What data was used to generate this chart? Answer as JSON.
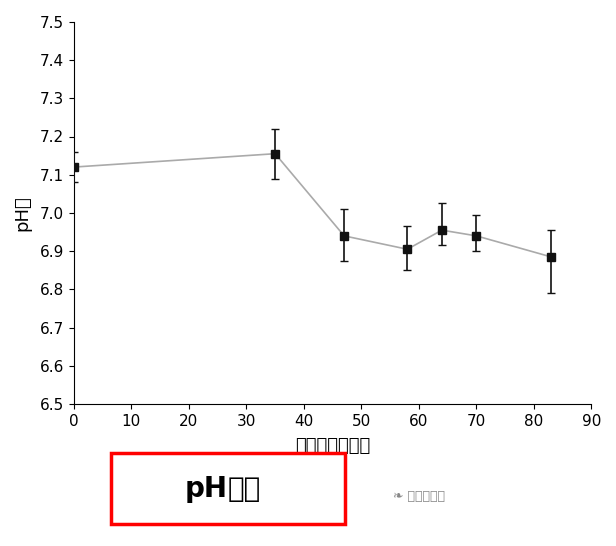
{
  "x": [
    0,
    35,
    47,
    58,
    64,
    70,
    83
  ],
  "y": [
    7.12,
    7.155,
    6.94,
    6.905,
    6.955,
    6.94,
    6.885
  ],
  "yerr_upper": [
    0.04,
    0.065,
    0.07,
    0.06,
    0.07,
    0.055,
    0.07
  ],
  "yerr_lower": [
    0.04,
    0.065,
    0.065,
    0.055,
    0.04,
    0.04,
    0.095
  ],
  "xlim": [
    0,
    90
  ],
  "ylim": [
    6.5,
    7.5
  ],
  "xticks": [
    0,
    10,
    20,
    30,
    40,
    50,
    60,
    70,
    80,
    90
  ],
  "yticks": [
    6.5,
    6.6,
    6.7,
    6.8,
    6.9,
    7.0,
    7.1,
    7.2,
    7.3,
    7.4,
    7.5
  ],
  "xlabel": "贯存时间（月）",
  "ylabel": "pH値",
  "title_latin": "pH",
  "title_chinese": "变化",
  "watermark": "亚洲环保网",
  "line_color": "#aaaaaa",
  "marker_color": "#111111",
  "background_color": "#ffffff",
  "title_fontsize": 20,
  "label_fontsize": 13,
  "tick_fontsize": 11,
  "watermark_fontsize": 9
}
